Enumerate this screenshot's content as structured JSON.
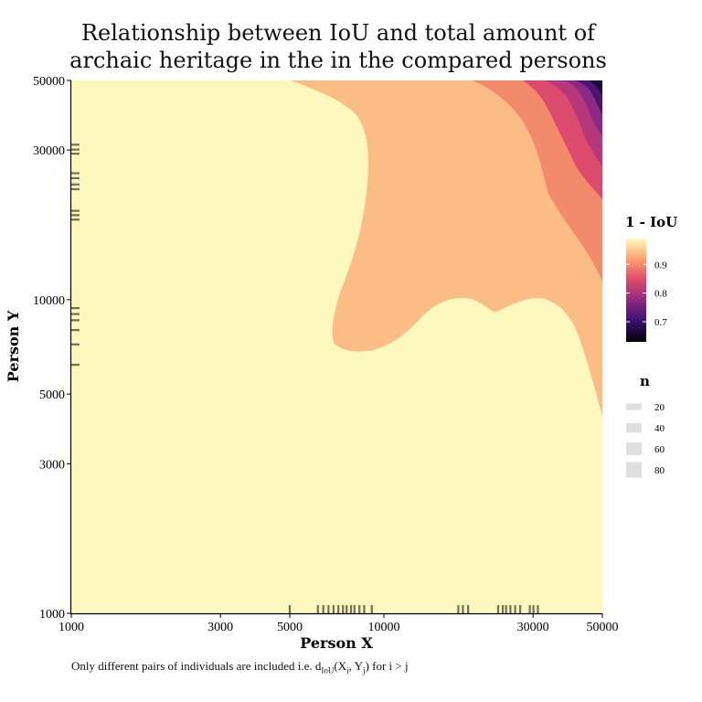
{
  "chart_data": {
    "type": "heatmap",
    "title_lines": [
      "Relationship between IoU and total amount of",
      "archaic heritage in the in the compared persons"
    ],
    "xlabel": "Person X",
    "ylabel": "Person Y",
    "x_scale": "log",
    "y_scale": "log",
    "xlim": [
      1000,
      50000
    ],
    "ylim": [
      1000,
      50000
    ],
    "x_ticks": [
      1000,
      3000,
      5000,
      10000,
      30000,
      50000
    ],
    "x_tick_labels": [
      "1000",
      "3000",
      "5000",
      "10000",
      "30000",
      "50000"
    ],
    "y_ticks": [
      1000,
      3000,
      5000,
      10000,
      30000,
      50000
    ],
    "y_tick_labels": [
      "1000",
      "3000",
      "5000",
      "10000",
      "30000",
      "50000"
    ],
    "fill_scale": {
      "title": "1 - IoU",
      "colormap": "magma",
      "range": [
        0.63,
        0.99
      ],
      "breaks": [
        0.9,
        0.8,
        0.7
      ],
      "break_labels": [
        "0.9",
        "0.8",
        "0.7"
      ],
      "colors": [
        "#000004",
        "#3b0f70",
        "#8c2981",
        "#de4968",
        "#fe9f6d",
        "#fcfdbf"
      ]
    },
    "size_legend": {
      "title": "n",
      "breaks": [
        20,
        40,
        60,
        80
      ],
      "labels": [
        "20",
        "40",
        "60",
        "80"
      ]
    },
    "contour_bands": [
      {
        "level": "0.93-0.99",
        "color": "#fdf8bd"
      },
      {
        "level": "0.88-0.93",
        "color": "#fcbc85"
      },
      {
        "level": "0.83-0.88",
        "color": "#f28a6c"
      },
      {
        "level": "0.78-0.83",
        "color": "#dc4a6c"
      },
      {
        "level": "0.73-0.78",
        "color": "#b6377a"
      },
      {
        "level": "0.68-0.73",
        "color": "#8a2a85"
      },
      {
        "level": "0.63-0.68",
        "color": "#4c1670"
      },
      {
        "level": "0.58-0.63",
        "color": "#1e0c3e"
      }
    ],
    "rug_x": [
      5000,
      6150,
      6400,
      6650,
      6900,
      7150,
      7400,
      7600,
      7850,
      8050,
      8350,
      8650,
      9150,
      17300,
      17900,
      18600,
      23200,
      24000,
      24600,
      25400,
      26300,
      27300,
      29300,
      30100,
      31100
    ],
    "rug_y": [
      6200,
      7200,
      8000,
      8600,
      9000,
      9400,
      18000,
      18600,
      19200,
      22500,
      23300,
      24400,
      25300,
      29200,
      30100,
      31200
    ]
  },
  "caption_parts": {
    "prefix": "Only different pairs of individuals are included i.e. d",
    "sub1": "IoU",
    "mid1": "(X",
    "sub2": "i",
    "mid2": ", Y",
    "sub3": "j",
    "suffix": ") for i > j"
  }
}
